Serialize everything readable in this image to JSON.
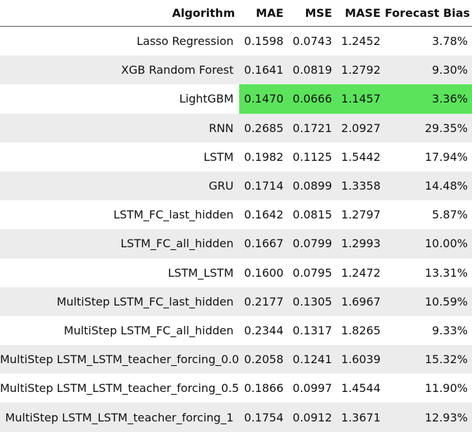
{
  "table": {
    "headers": [
      "Algorithm",
      "MAE",
      "MSE",
      "MASE",
      "Forecast Bias"
    ],
    "highlight_color": "#5be35b",
    "stripe_color": "#ececec",
    "rows": [
      {
        "algorithm": "Lasso Regression",
        "mae": "0.1598",
        "mse": "0.0743",
        "mase": "1.2452",
        "bias": "3.78%",
        "highlighted": false
      },
      {
        "algorithm": "XGB Random Forest",
        "mae": "0.1641",
        "mse": "0.0819",
        "mase": "1.2792",
        "bias": "9.30%",
        "highlighted": false
      },
      {
        "algorithm": "LightGBM",
        "mae": "0.1470",
        "mse": "0.0666",
        "mase": "1.1457",
        "bias": "3.36%",
        "highlighted": true
      },
      {
        "algorithm": "RNN",
        "mae": "0.2685",
        "mse": "0.1721",
        "mase": "2.0927",
        "bias": "29.35%",
        "highlighted": false
      },
      {
        "algorithm": "LSTM",
        "mae": "0.1982",
        "mse": "0.1125",
        "mase": "1.5442",
        "bias": "17.94%",
        "highlighted": false
      },
      {
        "algorithm": "GRU",
        "mae": "0.1714",
        "mse": "0.0899",
        "mase": "1.3358",
        "bias": "14.48%",
        "highlighted": false
      },
      {
        "algorithm": "LSTM_FC_last_hidden",
        "mae": "0.1642",
        "mse": "0.0815",
        "mase": "1.2797",
        "bias": "5.87%",
        "highlighted": false
      },
      {
        "algorithm": "LSTM_FC_all_hidden",
        "mae": "0.1667",
        "mse": "0.0799",
        "mase": "1.2993",
        "bias": "10.00%",
        "highlighted": false
      },
      {
        "algorithm": "LSTM_LSTM",
        "mae": "0.1600",
        "mse": "0.0795",
        "mase": "1.2472",
        "bias": "13.31%",
        "highlighted": false
      },
      {
        "algorithm": "MultiStep LSTM_FC_last_hidden",
        "mae": "0.2177",
        "mse": "0.1305",
        "mase": "1.6967",
        "bias": "10.59%",
        "highlighted": false
      },
      {
        "algorithm": "MultiStep LSTM_FC_all_hidden",
        "mae": "0.2344",
        "mse": "0.1317",
        "mase": "1.8265",
        "bias": "9.33%",
        "highlighted": false
      },
      {
        "algorithm": "MultiStep LSTM_LSTM_teacher_forcing_0.0",
        "mae": "0.2058",
        "mse": "0.1241",
        "mase": "1.6039",
        "bias": "15.32%",
        "highlighted": false
      },
      {
        "algorithm": "MultiStep LSTM_LSTM_teacher_forcing_0.5",
        "mae": "0.1866",
        "mse": "0.0997",
        "mase": "1.4544",
        "bias": "11.90%",
        "highlighted": false
      },
      {
        "algorithm": "MultiStep LSTM_LSTM_teacher_forcing_1",
        "mae": "0.1754",
        "mse": "0.0912",
        "mase": "1.3671",
        "bias": "12.93%",
        "highlighted": false
      }
    ]
  }
}
